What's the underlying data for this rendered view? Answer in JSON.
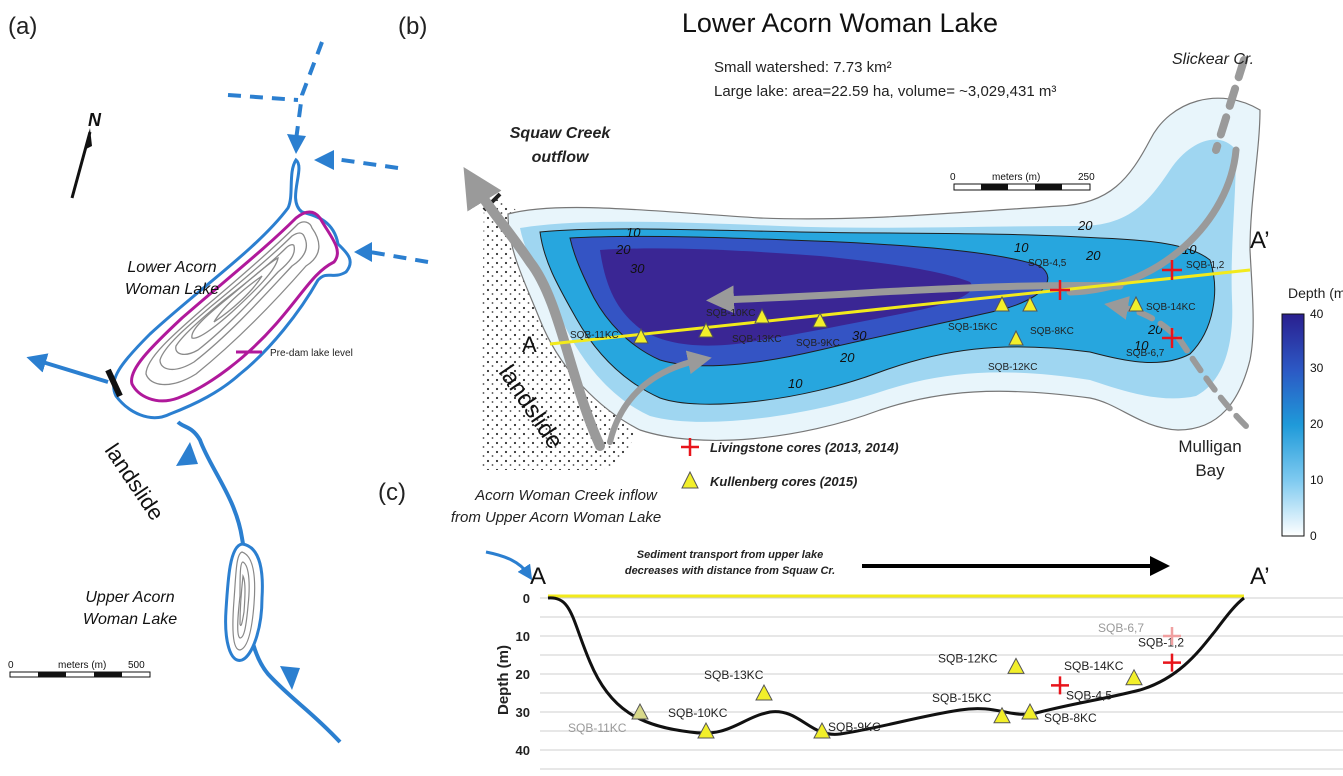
{
  "panels": {
    "a": "(a)",
    "b": "(b)",
    "c": "(c)"
  },
  "panel_a": {
    "north": "N",
    "lower_lake_line1": "Lower Acorn",
    "lower_lake_line2": "Woman Lake",
    "upper_lake_line1": "Upper Acorn",
    "upper_lake_line2": "Woman Lake",
    "landslide": "landslide",
    "legend_pre_dam": "Pre-dam lake level",
    "scale_label": "meters (m)",
    "scale_min": "0",
    "scale_max": "500",
    "colors": {
      "water": "#2b7fd0",
      "pre_dam": "#b0199b",
      "contour": "#808080"
    }
  },
  "panel_b": {
    "title": "Lower Acorn Woman Lake",
    "info_line1": "Small watershed: 7.73 km²",
    "info_line2": "Large lake: area=22.59 ha, volume= ~3,029,431 m³",
    "slickear": "Slickear Cr.",
    "squaw_line1": "Squaw Creek",
    "squaw_line2": "outflow",
    "mulligan_line1": "Mulligan",
    "mulligan_line2": "Bay",
    "landslide": "landslide",
    "point_a": "A",
    "point_a_prime": "A’",
    "scale_label": "meters (m)",
    "scale_min": "0",
    "scale_max": "250",
    "contours": [
      "10",
      "20",
      "30",
      "30",
      "20",
      "10",
      "10",
      "20",
      "10",
      "20",
      "10",
      "20"
    ],
    "livingstone_cores": [
      "SQB-1,2",
      "SQB-4,5",
      "SQB-6,7"
    ],
    "kullenberg_cores": [
      "SQB-10KC",
      "SQB-11KC",
      "SQB-13KC",
      "SQB-9KC",
      "SQB-15KC",
      "SQB-8KC",
      "SQB-12KC",
      "SQB-14KC"
    ],
    "legend_livingstone": "Livingstone cores (2013, 2014)",
    "legend_kullenberg": "Kullenberg cores (2015)",
    "depth_title": "Depth (m)",
    "depth_ticks": [
      "40",
      "30",
      "20",
      "10",
      "0"
    ],
    "colors": {
      "deep": "#3b2a9c",
      "mid": "#1f8fd8",
      "shallow": "#a8dcf3",
      "marker_tri": "#f2ef2a",
      "marker_cross": "#e8141b",
      "transect": "#f2ea1c"
    }
  },
  "panel_c": {
    "inflow_line1": "Acorn Woman Creek inflow",
    "inflow_line2": "from Upper Acorn Woman Lake",
    "transport_line1": "Sediment transport from upper lake",
    "transport_line2": "decreases with distance from Squaw Cr.",
    "point_a": "A",
    "point_a_prime": "A’",
    "ylabel": "Depth (m)",
    "yticks": [
      "0",
      "10",
      "20",
      "30",
      "40"
    ],
    "profile_cores": [
      {
        "label": "SQB-11KC",
        "type": "kullenberg",
        "depth": 30,
        "faded": true
      },
      {
        "label": "SQB-10KC",
        "type": "kullenberg",
        "depth": 35
      },
      {
        "label": "SQB-13KC",
        "type": "kullenberg",
        "depth": 25
      },
      {
        "label": "SQB-9KC",
        "type": "kullenberg",
        "depth": 35
      },
      {
        "label": "SQB-15KC",
        "type": "kullenberg",
        "depth": 31
      },
      {
        "label": "SQB-8KC",
        "type": "kullenberg",
        "depth": 30
      },
      {
        "label": "SQB-12KC",
        "type": "kullenberg",
        "depth": 18
      },
      {
        "label": "SQB-14KC",
        "type": "kullenberg",
        "depth": 21
      },
      {
        "label": "SQB-4,5",
        "type": "livingstone",
        "depth": 23
      },
      {
        "label": "SQB-1,2",
        "type": "livingstone",
        "depth": 17
      },
      {
        "label": "SQB-6,7",
        "type": "livingstone",
        "depth": 10,
        "faded": true
      }
    ]
  }
}
